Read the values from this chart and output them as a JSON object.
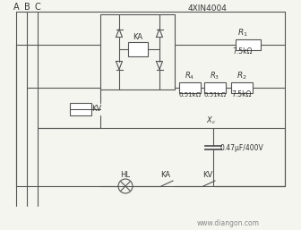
{
  "bg_color": "#f5f5f0",
  "line_color": "#555555",
  "line_width": 0.8,
  "title_text": "4XIN4004",
  "website": "www.diangon.com",
  "labels_abc": [
    "A",
    "B",
    "C"
  ],
  "label_R1": "R1",
  "label_R1_val": "7.5kΩ",
  "label_R2": "R2",
  "label_R2_val": "7.5kΩ",
  "label_R3": "R3",
  "label_R3_val": "0.51kΩ",
  "label_R4": "R4",
  "label_R4_val": "0.51kΩ",
  "label_KA": "KA",
  "label_KV": "KV",
  "label_HL": "HL",
  "label_Xc": "Xc",
  "label_cap": "0.47μF/400V"
}
